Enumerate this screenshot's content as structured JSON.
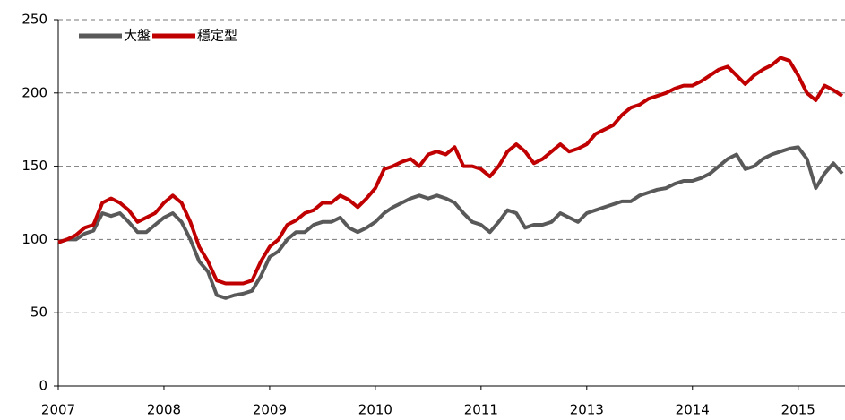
{
  "chart_data": {
    "type": "line",
    "categories": [
      "2007",
      null,
      null,
      null,
      null,
      null,
      null,
      null,
      null,
      null,
      null,
      null,
      "2008",
      null,
      null,
      null,
      null,
      null,
      null,
      null,
      null,
      null,
      null,
      null,
      "2009",
      null,
      null,
      null,
      null,
      null,
      null,
      null,
      null,
      null,
      null,
      null,
      "2010",
      null,
      null,
      null,
      null,
      null,
      null,
      null,
      null,
      null,
      null,
      null,
      "2011",
      null,
      null,
      null,
      null,
      null,
      null,
      null,
      null,
      null,
      null,
      null,
      "2013",
      null,
      null,
      null,
      null,
      null,
      null,
      null,
      null,
      null,
      null,
      null,
      "2014",
      null,
      null,
      null,
      null,
      null,
      null,
      null,
      null,
      null,
      null,
      null,
      "2015",
      null,
      null,
      null,
      null,
      null
    ],
    "series": [
      {
        "name": "大盤",
        "color": "#595959",
        "values": [
          98,
          100,
          100,
          104,
          106,
          118,
          116,
          118,
          112,
          105,
          105,
          110,
          115,
          118,
          112,
          100,
          85,
          78,
          62,
          60,
          62,
          63,
          65,
          75,
          88,
          92,
          100,
          105,
          105,
          110,
          112,
          112,
          115,
          108,
          105,
          108,
          112,
          118,
          122,
          125,
          128,
          130,
          128,
          130,
          128,
          125,
          118,
          112,
          110,
          105,
          112,
          120,
          118,
          108,
          110,
          110,
          112,
          118,
          115,
          112,
          118,
          120,
          122,
          124,
          126,
          126,
          130,
          132,
          134,
          135,
          138,
          140,
          140,
          142,
          145,
          150,
          155,
          158,
          148,
          150,
          155,
          158,
          160,
          162,
          163,
          155,
          135,
          145,
          152,
          145
        ]
      },
      {
        "name": "穩定型",
        "color": "#c00000",
        "values": [
          98,
          100,
          103,
          108,
          110,
          125,
          128,
          125,
          120,
          112,
          115,
          118,
          125,
          130,
          125,
          112,
          95,
          85,
          72,
          70,
          70,
          70,
          72,
          85,
          95,
          100,
          110,
          113,
          118,
          120,
          125,
          125,
          130,
          127,
          122,
          128,
          135,
          148,
          150,
          153,
          155,
          150,
          158,
          160,
          158,
          163,
          150,
          150,
          148,
          143,
          150,
          160,
          165,
          160,
          152,
          155,
          160,
          165,
          160,
          162,
          165,
          172,
          175,
          178,
          185,
          190,
          192,
          196,
          198,
          200,
          203,
          205,
          205,
          208,
          212,
          216,
          218,
          212,
          206,
          212,
          216,
          219,
          224,
          222,
          212,
          200,
          195,
          205,
          202,
          198
        ]
      }
    ],
    "ylim": [
      0,
      250
    ],
    "yticks": [
      0,
      50,
      100,
      150,
      200,
      250
    ],
    "grid": true,
    "legend": "top-left"
  }
}
